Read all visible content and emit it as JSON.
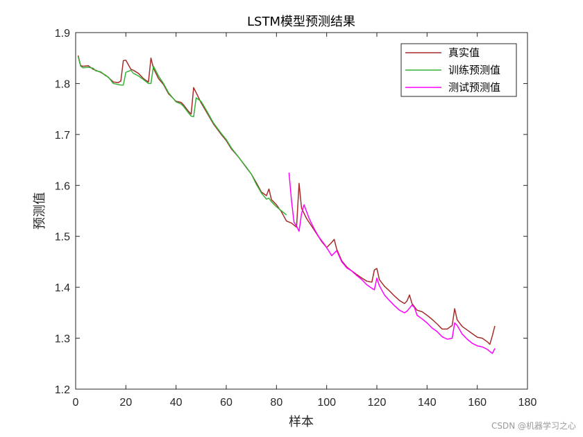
{
  "chart_data": {
    "type": "line",
    "title": "LSTM模型预测结果",
    "xlabel": "样本",
    "ylabel": "预测值",
    "xlim": [
      0,
      180
    ],
    "ylim": [
      1.2,
      1.9
    ],
    "xticks": [
      0,
      20,
      40,
      60,
      80,
      100,
      120,
      140,
      160,
      180
    ],
    "yticks": [
      1.2,
      1.3,
      1.4,
      1.5,
      1.6,
      1.7,
      1.8,
      1.9
    ],
    "xtick_labels": [
      "0",
      "20",
      "40",
      "60",
      "80",
      "100",
      "120",
      "140",
      "160",
      "180"
    ],
    "ytick_labels": [
      "1.2",
      "1.3",
      "1.4",
      "1.5",
      "1.6",
      "1.7",
      "1.8",
      "1.9"
    ],
    "grid": false,
    "legend_position": "top-right",
    "series": [
      {
        "name": "真实值",
        "color": "#a52a2a",
        "x": [
          1,
          2,
          3,
          5,
          7,
          8,
          10,
          12,
          13,
          15,
          17,
          18,
          19,
          20,
          22,
          23,
          25,
          27,
          28,
          29,
          30,
          31,
          33,
          35,
          37,
          39,
          40,
          42,
          43,
          45,
          46,
          47,
          48,
          50,
          52,
          55,
          58,
          60,
          62,
          65,
          68,
          70,
          72,
          74,
          76,
          77,
          78,
          80,
          82,
          84,
          86,
          88,
          89,
          90,
          92,
          94,
          96,
          98,
          100,
          102,
          103,
          104,
          106,
          108,
          110,
          112,
          114,
          116,
          118,
          119,
          120,
          121,
          123,
          125,
          127,
          129,
          131,
          132,
          133,
          134,
          136,
          138,
          140,
          142,
          144,
          146,
          148,
          150,
          151,
          152,
          154,
          156,
          158,
          160,
          162,
          164,
          165,
          166,
          167
        ],
        "y": [
          1.855,
          1.835,
          1.834,
          1.835,
          1.828,
          1.826,
          1.822,
          1.816,
          1.812,
          1.803,
          1.802,
          1.805,
          1.845,
          1.846,
          1.828,
          1.826,
          1.82,
          1.81,
          1.806,
          1.803,
          1.85,
          1.83,
          1.81,
          1.798,
          1.78,
          1.77,
          1.765,
          1.763,
          1.758,
          1.745,
          1.74,
          1.792,
          1.782,
          1.762,
          1.745,
          1.72,
          1.7,
          1.688,
          1.672,
          1.655,
          1.635,
          1.622,
          1.605,
          1.587,
          1.58,
          1.593,
          1.572,
          1.562,
          1.548,
          1.53,
          1.526,
          1.518,
          1.604,
          1.555,
          1.535,
          1.52,
          1.505,
          1.49,
          1.478,
          1.488,
          1.494,
          1.475,
          1.452,
          1.44,
          1.432,
          1.425,
          1.418,
          1.412,
          1.41,
          1.434,
          1.437,
          1.415,
          1.402,
          1.393,
          1.383,
          1.374,
          1.368,
          1.373,
          1.385,
          1.368,
          1.355,
          1.352,
          1.345,
          1.337,
          1.328,
          1.318,
          1.318,
          1.325,
          1.358,
          1.336,
          1.323,
          1.316,
          1.309,
          1.302,
          1.3,
          1.293,
          1.288,
          1.305,
          1.324
        ]
      },
      {
        "name": "训练预测值",
        "color": "#33b233",
        "x": [
          1,
          2,
          3,
          5,
          7,
          8,
          10,
          12,
          13,
          15,
          17,
          18,
          19,
          20,
          22,
          23,
          25,
          27,
          28,
          29,
          30,
          31,
          33,
          35,
          37,
          39,
          40,
          42,
          43,
          45,
          46,
          47,
          48,
          50,
          52,
          55,
          58,
          60,
          62,
          65,
          68,
          70,
          72,
          74,
          76,
          77,
          78,
          80,
          82,
          84
        ],
        "y": [
          1.853,
          1.834,
          1.831,
          1.832,
          1.83,
          1.825,
          1.823,
          1.815,
          1.813,
          1.8,
          1.798,
          1.797,
          1.797,
          1.822,
          1.826,
          1.82,
          1.815,
          1.808,
          1.804,
          1.8,
          1.8,
          1.834,
          1.815,
          1.8,
          1.782,
          1.77,
          1.764,
          1.76,
          1.755,
          1.742,
          1.736,
          1.735,
          1.772,
          1.765,
          1.748,
          1.722,
          1.702,
          1.69,
          1.674,
          1.655,
          1.636,
          1.622,
          1.602,
          1.585,
          1.573,
          1.575,
          1.568,
          1.558,
          1.55,
          1.542
        ]
      },
      {
        "name": "测试预测值",
        "color": "#ff00ff",
        "x": [
          85,
          86,
          87,
          88,
          89,
          90,
          91,
          93,
          95,
          97,
          99,
          101,
          102,
          104,
          106,
          108,
          110,
          112,
          114,
          116,
          118,
          119,
          120,
          121,
          123,
          125,
          127,
          129,
          131,
          132,
          134,
          135,
          136,
          138,
          140,
          142,
          144,
          146,
          148,
          150,
          151,
          152,
          154,
          156,
          158,
          160,
          162,
          164,
          165,
          166,
          167
        ],
        "y": [
          1.625,
          1.57,
          1.528,
          1.52,
          1.51,
          1.545,
          1.562,
          1.535,
          1.515,
          1.498,
          1.485,
          1.47,
          1.462,
          1.472,
          1.45,
          1.438,
          1.432,
          1.423,
          1.415,
          1.405,
          1.398,
          1.395,
          1.418,
          1.403,
          1.385,
          1.374,
          1.364,
          1.355,
          1.35,
          1.353,
          1.365,
          1.36,
          1.345,
          1.338,
          1.33,
          1.32,
          1.313,
          1.303,
          1.298,
          1.3,
          1.33,
          1.325,
          1.308,
          1.298,
          1.29,
          1.285,
          1.283,
          1.278,
          1.274,
          1.27,
          1.28
        ]
      }
    ]
  },
  "watermark": "CSDN @机器学习之心"
}
